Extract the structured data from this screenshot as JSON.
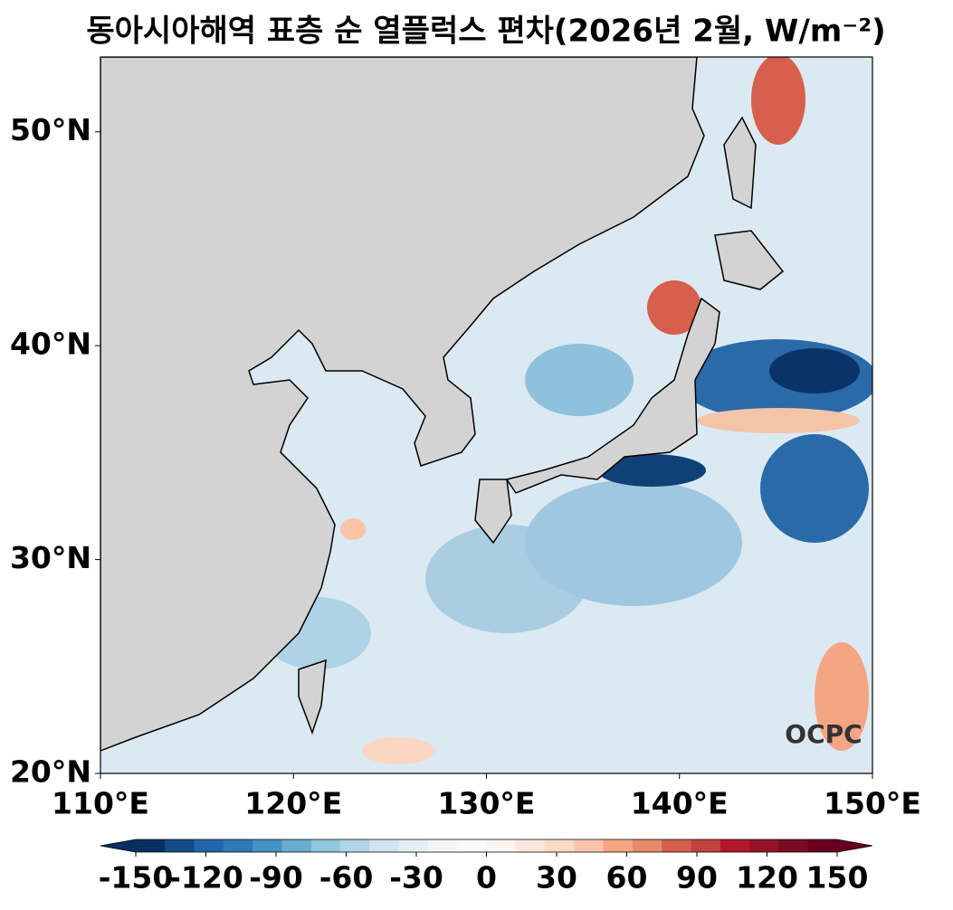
{
  "title": "동아시아해역 표층 순 열플럭스 편차(2026년 2월, W/m⁻²)",
  "map": {
    "xlim": [
      110,
      150
    ],
    "ylim": [
      20,
      53.5
    ],
    "xticks": [
      {
        "value": 110,
        "label": "110°E"
      },
      {
        "value": 120,
        "label": "120°E"
      },
      {
        "value": 130,
        "label": "130°E"
      },
      {
        "value": 140,
        "label": "140°E"
      },
      {
        "value": 150,
        "label": "150°E"
      }
    ],
    "yticks": [
      {
        "value": 20,
        "label": "20°N"
      },
      {
        "value": 30,
        "label": "30°N"
      },
      {
        "value": 40,
        "label": "40°N"
      },
      {
        "value": 50,
        "label": "50°N"
      }
    ],
    "logo": "OCPC"
  },
  "colorbar": {
    "lim": [
      -150,
      150
    ],
    "ticks": [
      -150,
      -120,
      -90,
      -60,
      -30,
      0,
      30,
      60,
      90,
      120,
      150
    ],
    "colors": [
      "#053061",
      "#134c87",
      "#2166ac",
      "#2f79b5",
      "#4393c3",
      "#6aacd0",
      "#92c5de",
      "#b1d5e7",
      "#d1e5f0",
      "#e4eef5",
      "#f2f6f8",
      "#f9fbfc",
      "#fdf5f1",
      "#fbe7dc",
      "#fddbc7",
      "#f9c4a9",
      "#f4a582",
      "#e8896b",
      "#d6604d",
      "#c3413f",
      "#b2182b",
      "#961325",
      "#7a0b22",
      "#67001f"
    ]
  }
}
